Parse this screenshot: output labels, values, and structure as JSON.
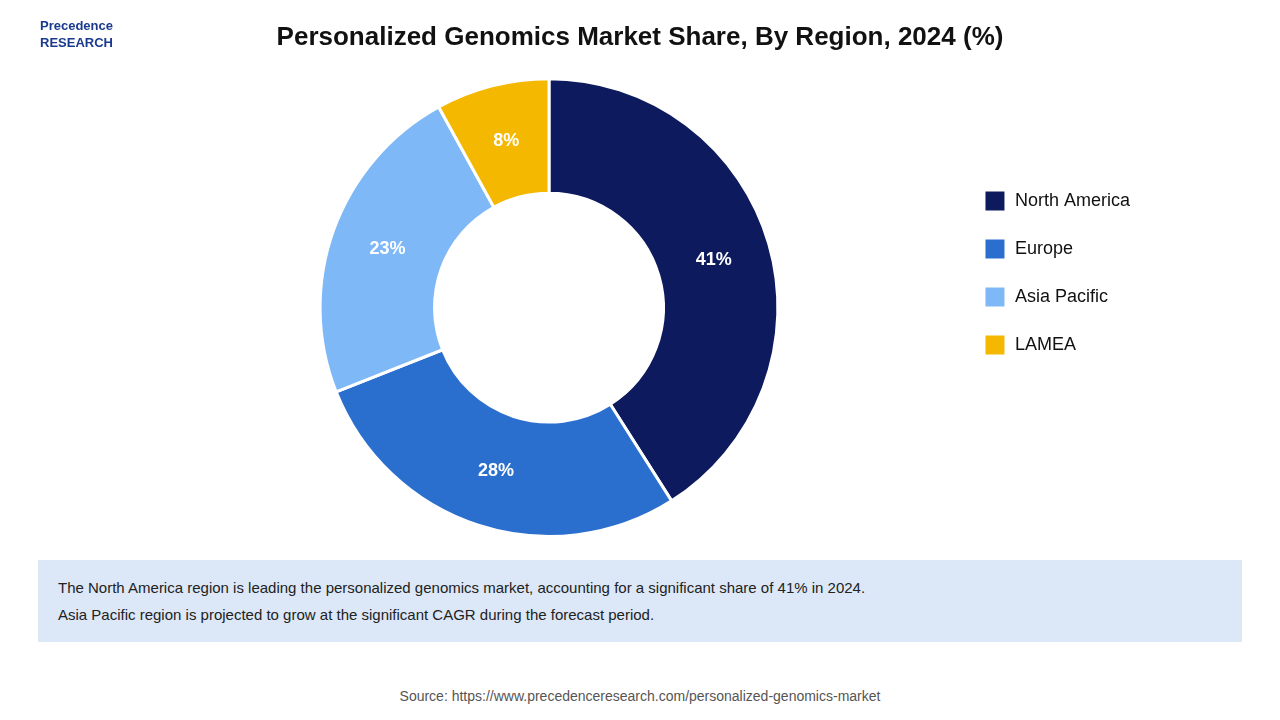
{
  "chart_data": {
    "type": "doughnut",
    "title": "Personalized Genomics Market Share, By Region, 2024 (%)",
    "categories": [
      "North America",
      "Europe",
      "Asia Pacific",
      "LAMEA"
    ],
    "values": [
      41,
      28,
      23,
      8
    ],
    "value_labels": [
      "41%",
      "28%",
      "23%",
      "8%"
    ],
    "colors": [
      "#0d1b5e",
      "#2b6fce",
      "#7eb8f7",
      "#f5b800"
    ],
    "data_labels": true,
    "legend": "right",
    "annotations": [
      "Precedence\nRESEARCH",
      "The North America region is leading the personalized genomics market, accounting for a significant share of 41% in 2024.\nAsia Pacific region is projected to grow at the significant CAGR during the forecast period.",
      "Source: https://www.precedenceresearch.com/personalized-genomics-market"
    ]
  }
}
